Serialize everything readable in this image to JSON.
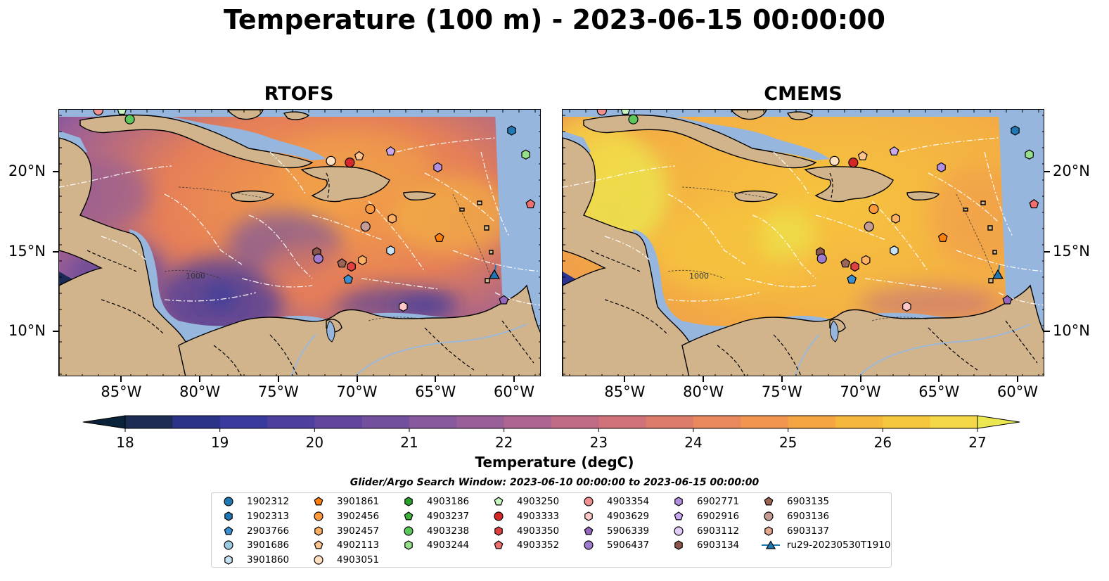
{
  "title": "Temperature (100 m) - 2023-06-15 00:00:00",
  "panels": [
    {
      "name": "RTOFS"
    },
    {
      "name": "CMEMS"
    }
  ],
  "axes": {
    "lon_ticks": [
      "85°W",
      "80°W",
      "75°W",
      "70°W",
      "65°W",
      "60°W"
    ],
    "lat_ticks": [
      "20°N",
      "15°N",
      "10°N"
    ],
    "isobath_label": "1000"
  },
  "colorbar": {
    "label": "Temperature (degC)",
    "ticks": [
      "18",
      "19",
      "20",
      "21",
      "22",
      "23",
      "24",
      "25",
      "26",
      "27"
    ],
    "min": 18,
    "max": 27,
    "colors": [
      "#0b2339",
      "#1d2c55",
      "#2b3388",
      "#3a3a9e",
      "#4d3f9e",
      "#61469c",
      "#73509d",
      "#87599c",
      "#9a5f99",
      "#ae6592",
      "#c06b85",
      "#d1727a",
      "#de7c6c",
      "#ea885d",
      "#f2964f",
      "#f6a543",
      "#f6b73d",
      "#f5c73e",
      "#f4d847",
      "#ebe84f"
    ]
  },
  "legend": {
    "title": "Glider/Argo Search Window: 2023-06-10 00:00:00 to 2023-06-15 00:00:00",
    "columns": [
      [
        {
          "label": "1902312",
          "marker": "circle",
          "color": "#1f77b4"
        },
        {
          "label": "1902313",
          "marker": "hexagon",
          "color": "#1f77b4"
        },
        {
          "label": "2903766",
          "marker": "pentagon",
          "color": "#3a8fd0"
        },
        {
          "label": "3901686",
          "marker": "circle",
          "color": "#9ecae1"
        },
        {
          "label": "3901860",
          "marker": "hexagon",
          "color": "#c6e2f5"
        }
      ],
      [
        {
          "label": "3901861",
          "marker": "pentagon",
          "color": "#ff7f0e"
        },
        {
          "label": "3902456",
          "marker": "circle",
          "color": "#ff9a3c"
        },
        {
          "label": "3902457",
          "marker": "hexagon",
          "color": "#ffb060"
        },
        {
          "label": "4902113",
          "marker": "pentagon",
          "color": "#ffc58e"
        },
        {
          "label": "4903051",
          "marker": "circle",
          "color": "#ffe0c0"
        }
      ],
      [
        {
          "label": "4903186",
          "marker": "hexagon",
          "color": "#2ca02c"
        },
        {
          "label": "4903237",
          "marker": "pentagon",
          "color": "#3fb13f"
        },
        {
          "label": "4903238",
          "marker": "circle",
          "color": "#5cc85c"
        },
        {
          "label": "4903244",
          "marker": "hexagon",
          "color": "#98df8a"
        }
      ],
      [
        {
          "label": "4903250",
          "marker": "pentagon",
          "color": "#c8f5c0"
        },
        {
          "label": "4903333",
          "marker": "circle",
          "color": "#d62728"
        },
        {
          "label": "4903350",
          "marker": "hexagon",
          "color": "#e04040"
        },
        {
          "label": "4903352",
          "marker": "pentagon",
          "color": "#f07070"
        }
      ],
      [
        {
          "label": "4903354",
          "marker": "circle",
          "color": "#f09090"
        },
        {
          "label": "4903629",
          "marker": "hexagon",
          "color": "#ffc8c8"
        },
        {
          "label": "5906339",
          "marker": "pentagon",
          "color": "#9467bd"
        },
        {
          "label": "5906437",
          "marker": "circle",
          "color": "#a07cd0"
        }
      ],
      [
        {
          "label": "6902771",
          "marker": "hexagon",
          "color": "#b38fe0"
        },
        {
          "label": "6902916",
          "marker": "pentagon",
          "color": "#c9a8f0"
        },
        {
          "label": "6903112",
          "marker": "circle",
          "color": "#e3cdf8"
        },
        {
          "label": "6903134",
          "marker": "hexagon",
          "color": "#8c564b"
        }
      ],
      [
        {
          "label": "6903135",
          "marker": "pentagon",
          "color": "#9c6656"
        },
        {
          "label": "6903136",
          "marker": "circle",
          "color": "#c49c94"
        },
        {
          "label": "6903137",
          "marker": "hexagon",
          "color": "#e6a890"
        },
        {
          "label": "ru29-20230530T1910",
          "marker": "triangle-line",
          "color": "#1f77b4"
        }
      ]
    ]
  },
  "colors": {
    "land": "#d2b48c",
    "shelf": "#96b6de",
    "frame": "#000000"
  }
}
